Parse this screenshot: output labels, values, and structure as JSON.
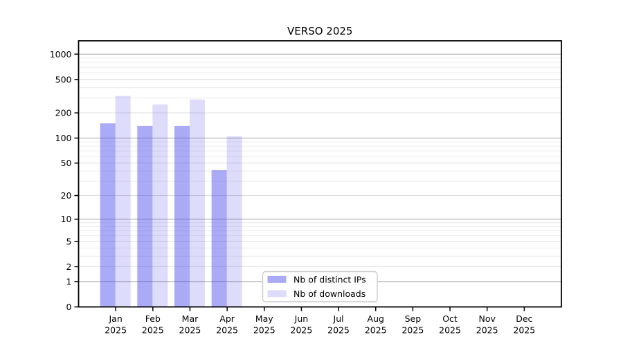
{
  "title": "VERSO 2025",
  "chart_data": {
    "type": "bar",
    "title": "VERSO 2025",
    "xlabel": "",
    "ylabel": "",
    "yscale": "log1p",
    "grid": "horizontal",
    "ylim": [
      0,
      1440
    ],
    "y_ticks": [
      0,
      1,
      2,
      5,
      10,
      20,
      50,
      100,
      200,
      500,
      1000
    ],
    "y_minor_ticks": [
      3,
      4,
      6,
      7,
      8,
      9,
      30,
      40,
      60,
      70,
      80,
      90,
      300,
      400,
      600,
      700,
      800,
      900
    ],
    "categories": [
      "Jan 2025",
      "Feb 2025",
      "Mar 2025",
      "Apr 2025",
      "May 2025",
      "Jun 2025",
      "Jul 2025",
      "Aug 2025",
      "Sep 2025",
      "Oct 2025",
      "Nov 2025",
      "Dec 2025"
    ],
    "series": [
      {
        "name": "Nb of distinct IPs",
        "color": "rgba(70,70,235,0.46)",
        "values": [
          150,
          140,
          140,
          41,
          null,
          null,
          null,
          null,
          null,
          null,
          null,
          null
        ]
      },
      {
        "name": "Nb of downloads",
        "color": "rgba(70,70,235,0.185)",
        "values": [
          318,
          252,
          289,
          105,
          null,
          null,
          null,
          null,
          null,
          null,
          null,
          null
        ]
      }
    ],
    "legend_position": "lower center"
  },
  "legend": {
    "items": [
      {
        "label": "Nb of distinct IPs"
      },
      {
        "label": "Nb of downloads"
      }
    ]
  },
  "colors": {
    "bar_distinct_ips": "rgba(70,70,235,0.46)",
    "bar_downloads": "rgba(70,70,235,0.185)",
    "grid_major": "#a3a3a3",
    "grid_labeled": "#dcdcdc",
    "grid_minor": "#ececec",
    "axis": "#000000",
    "legend_border": "#cccccc",
    "legend_bg": "#ffffff"
  }
}
